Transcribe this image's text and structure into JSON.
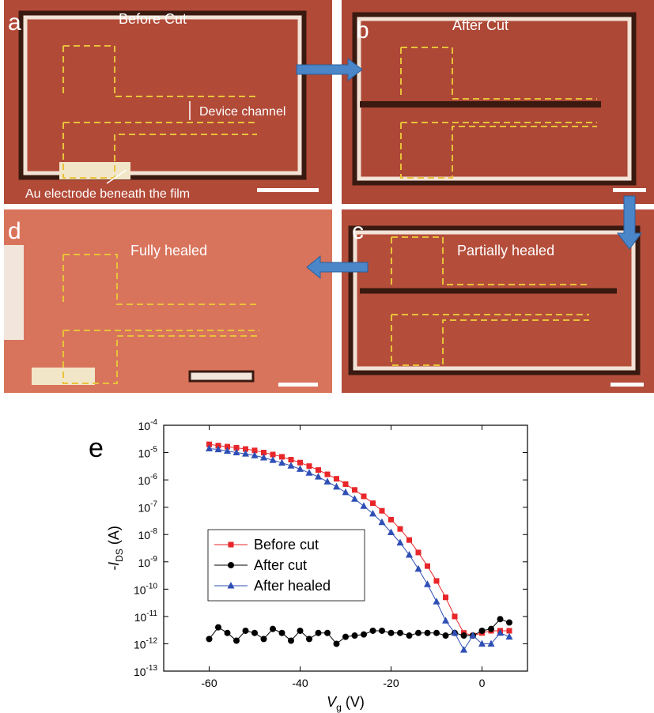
{
  "panels": [
    {
      "label": "a",
      "caption": "Before Cut"
    },
    {
      "label": "b",
      "caption": "After Cut"
    },
    {
      "label": "c",
      "caption": "Partially  healed"
    },
    {
      "label": "d",
      "caption": "Fully  healed"
    }
  ],
  "annotations": {
    "channel": "Device channel",
    "electrode": "Au electrode beneath the film"
  },
  "chart_data": {
    "type": "line",
    "panel_label": "e",
    "x_label": {
      "text": "V",
      "sub": "g",
      "unit": " (V)"
    },
    "y_label": {
      "text": "-I",
      "sub": "DS",
      "unit": " (A)"
    },
    "log_y": true,
    "xlim": [
      -70,
      10
    ],
    "xticks": [
      -60,
      -40,
      -20,
      0
    ],
    "ylim": [
      1e-13,
      0.0001
    ],
    "yticks": [
      {
        "value": 1e-13,
        "label": "10",
        "exponent": "-13"
      },
      {
        "value": 1e-12,
        "label": "10",
        "exponent": "-12"
      },
      {
        "value": 1e-11,
        "label": "10",
        "exponent": "-11"
      },
      {
        "value": 1e-10,
        "label": "10",
        "exponent": "-10"
      },
      {
        "value": 1e-09,
        "label": "10",
        "exponent": "-9"
      },
      {
        "value": 1e-08,
        "label": "10",
        "exponent": "-8"
      },
      {
        "value": 1e-07,
        "label": "10",
        "exponent": "-7"
      },
      {
        "value": 1e-06,
        "label": "10",
        "exponent": "-6"
      },
      {
        "value": 1e-05,
        "label": "10",
        "exponent": "-5"
      },
      {
        "value": 0.0001,
        "label": "10",
        "exponent": "-4"
      }
    ],
    "x": [
      -60,
      -58,
      -56,
      -54,
      -52,
      -50,
      -48,
      -46,
      -44,
      -42,
      -40,
      -38,
      -36,
      -34,
      -32,
      -30,
      -28,
      -26,
      -24,
      -22,
      -20,
      -18,
      -16,
      -14,
      -12,
      -10,
      -8,
      -6,
      -4,
      -2,
      0,
      2,
      4,
      6
    ],
    "series": [
      {
        "name": "Before cut",
        "color": "#e8262a",
        "marker": "square",
        "values": [
          2e-05,
          1.8e-05,
          1.65e-05,
          1.5e-05,
          1.35e-05,
          1.2e-05,
          1e-05,
          8.5e-06,
          7e-06,
          5.5e-06,
          4.3e-06,
          3.2e-06,
          2.3e-06,
          1.6e-06,
          1.1e-06,
          7e-07,
          4.3e-07,
          2.5e-07,
          1.4e-07,
          7.4e-08,
          3.5e-08,
          1.6e-08,
          6.3e-09,
          2.2e-09,
          7e-10,
          2e-10,
          5e-11,
          1e-11,
          2.5e-12,
          2e-12,
          2.5e-12,
          3e-12,
          3e-12,
          3e-12
        ]
      },
      {
        "name": "After cut",
        "color": "#000000",
        "marker": "circle",
        "values": [
          1.5e-12,
          4e-12,
          2.5e-12,
          1.3e-12,
          3e-12,
          2.5e-12,
          1.5e-12,
          3.5e-12,
          2.5e-12,
          1.3e-12,
          3e-12,
          1.5e-12,
          2.5e-12,
          2.5e-12,
          1e-12,
          1.8e-12,
          2e-12,
          2.2e-12,
          3e-12,
          3e-12,
          2.5e-12,
          2.5e-12,
          2e-12,
          2.5e-12,
          2.5e-12,
          2.5e-12,
          2e-12,
          2.5e-12,
          2e-12,
          2e-12,
          3e-12,
          3.5e-12,
          8e-12,
          6e-12
        ]
      },
      {
        "name": "After healed",
        "color": "#2f4fb5",
        "marker": "triangle",
        "values": [
          1.4e-05,
          1.3e-05,
          1.15e-05,
          1e-05,
          9e-06,
          7.8e-06,
          6.5e-06,
          5.3e-06,
          4.2e-06,
          3.3e-06,
          2.5e-06,
          1.8e-06,
          1.3e-06,
          8.6e-07,
          5.6e-07,
          3.5e-07,
          2e-07,
          1.1e-07,
          5.8e-08,
          2.8e-08,
          1.2e-08,
          5e-09,
          1.8e-09,
          5.5e-10,
          1.5e-10,
          3.5e-11,
          7e-12,
          2.5e-12,
          6e-13,
          2e-12,
          1e-12,
          1e-12,
          2.5e-12,
          1.8e-12
        ]
      }
    ]
  }
}
